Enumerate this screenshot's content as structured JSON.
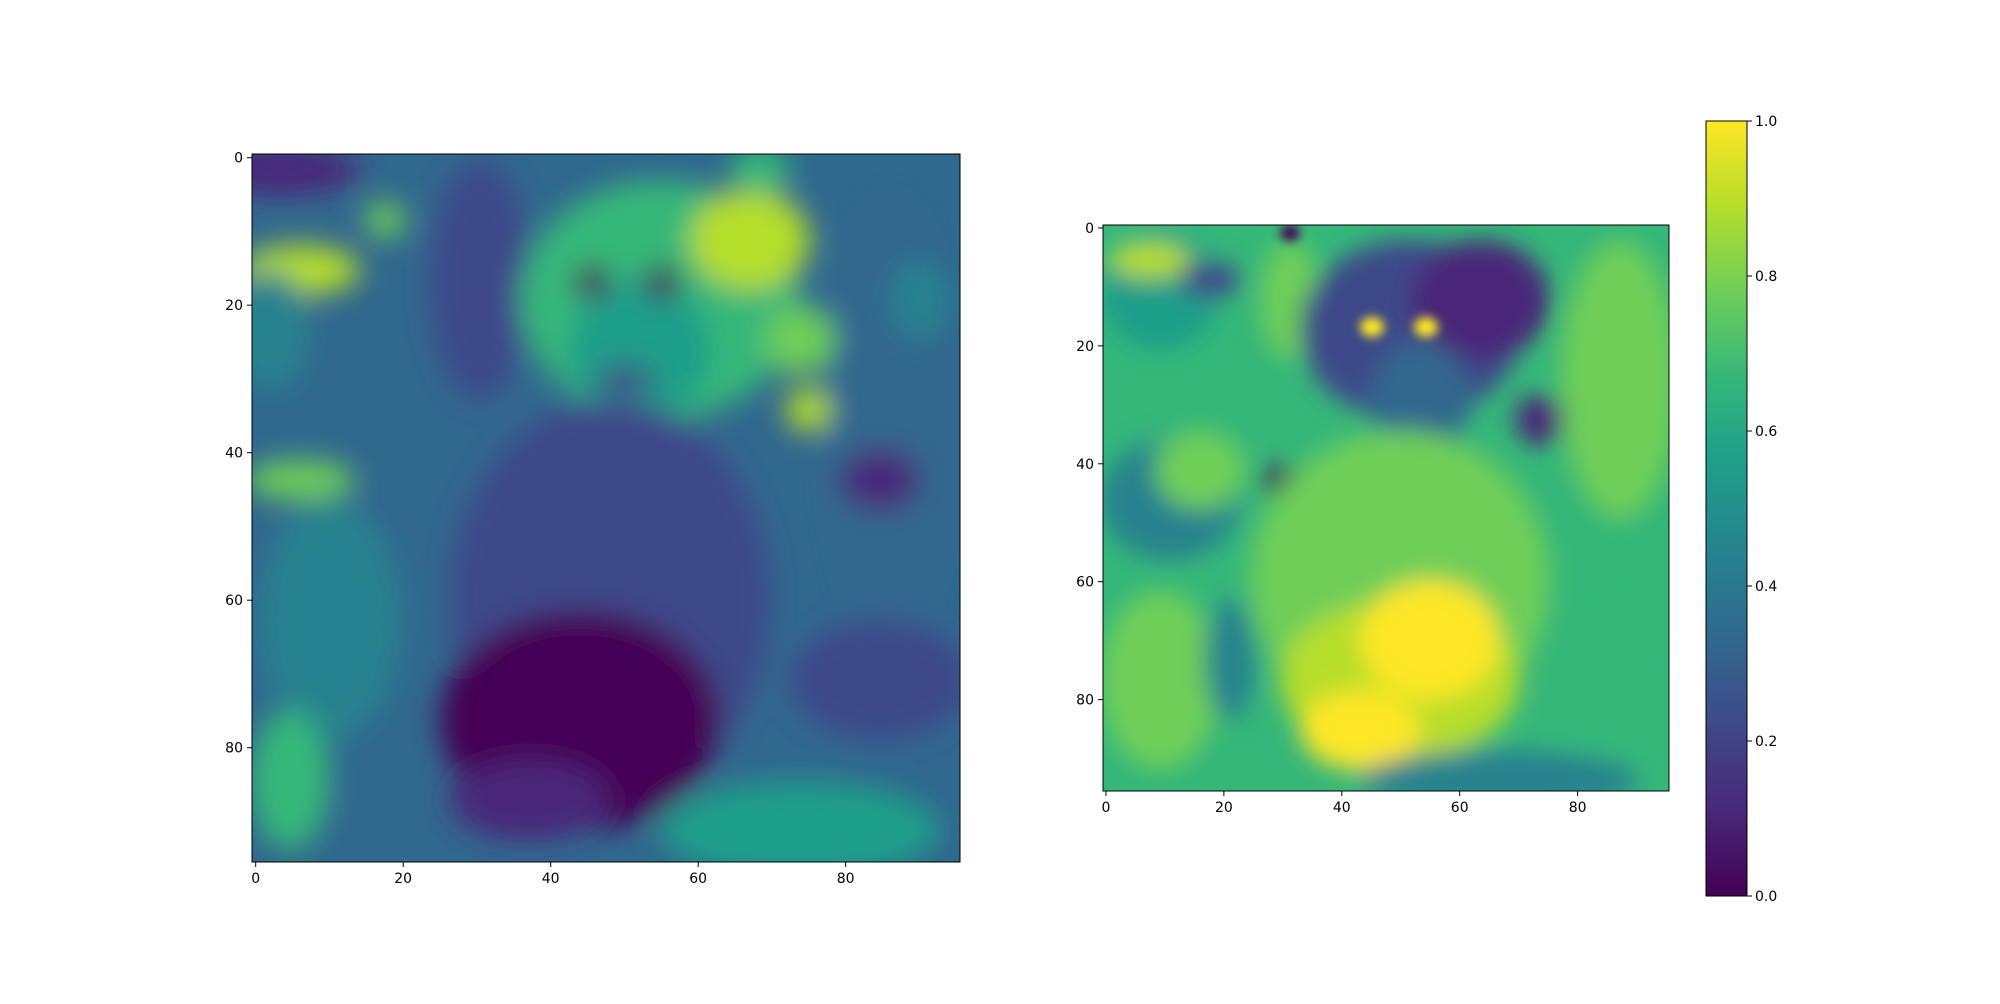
{
  "chart_data": [
    {
      "type": "heatmap",
      "title": "",
      "xlabel": "",
      "ylabel": "",
      "image_rows": 96,
      "image_cols": 96,
      "colormap": "viridis",
      "xticks": [
        0,
        20,
        40,
        60,
        80
      ],
      "yticks": [
        0,
        20,
        40,
        60,
        80
      ],
      "content": "grayscale photo of a monkey rendered with viridis colormap (dark body, brighter face and background)"
    },
    {
      "type": "heatmap",
      "title": "",
      "xlabel": "",
      "ylabel": "",
      "image_rows": 96,
      "image_cols": 96,
      "colormap": "viridis",
      "xticks": [
        0,
        20,
        40,
        60,
        80
      ],
      "yticks": [
        0,
        20,
        40,
        60,
        80
      ],
      "content": "inverted version of the same monkey photo (bright body, dark face with bright eyes)"
    }
  ],
  "colorbar": {
    "colormap": "viridis",
    "range": [
      0.0,
      1.0
    ],
    "ticks": [
      "0.0",
      "0.2",
      "0.4",
      "0.6",
      "0.8",
      "1.0"
    ]
  },
  "colors": {
    "viridis": [
      "#440154",
      "#482878",
      "#3e4989",
      "#31688e",
      "#26828e",
      "#1f9e89",
      "#35b779",
      "#6ece58",
      "#b5de2b",
      "#fde725"
    ]
  }
}
